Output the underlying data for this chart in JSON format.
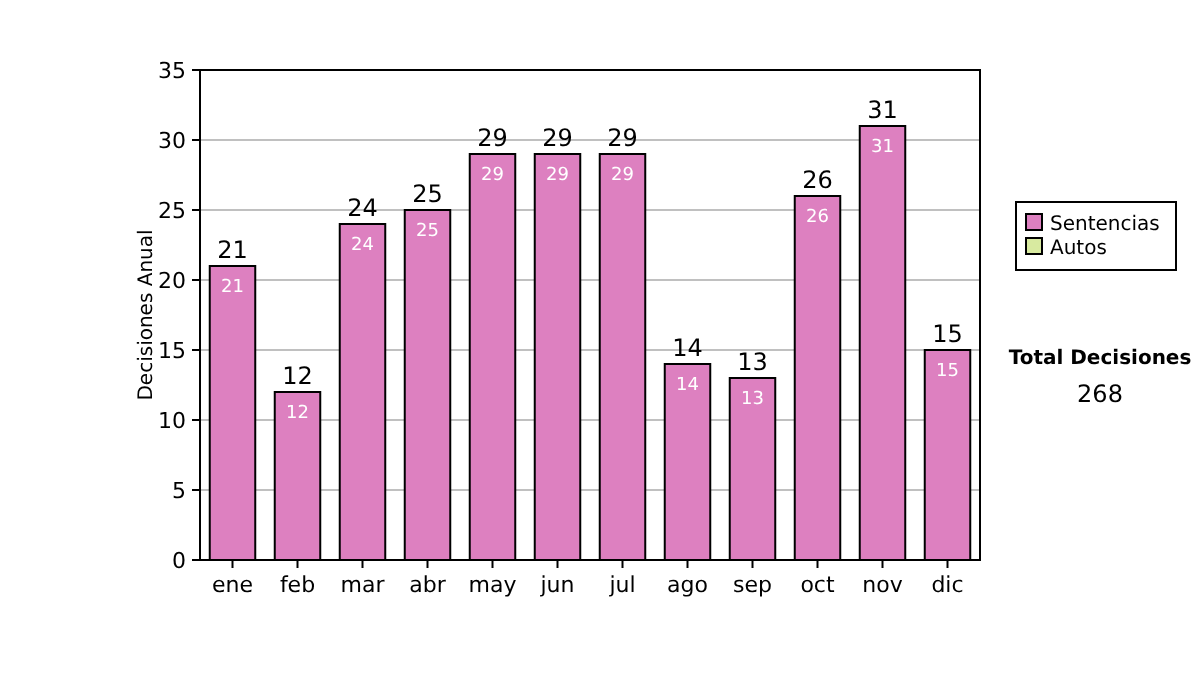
{
  "chart_data": {
    "type": "bar",
    "ylabel": "Decisiones Anual",
    "categories": [
      "ene",
      "feb",
      "mar",
      "abr",
      "may",
      "jun",
      "jul",
      "ago",
      "sep",
      "oct",
      "nov",
      "dic"
    ],
    "series": [
      {
        "name": "Sentencias",
        "color": "#dd80c0",
        "values": [
          21,
          12,
          24,
          25,
          29,
          29,
          29,
          14,
          13,
          26,
          31,
          15
        ]
      },
      {
        "name": "Autos",
        "color": "#d8eaa0",
        "values": [
          null,
          null,
          null,
          null,
          null,
          null,
          null,
          null,
          null,
          null,
          null,
          null
        ]
      }
    ],
    "totals": [
      "21",
      "12",
      "24",
      "25",
      "29",
      "29",
      "29",
      "14",
      "13",
      "26",
      "31",
      "15"
    ],
    "data_labels": true,
    "ylim": [
      0,
      35
    ],
    "yticks": [
      0,
      5,
      10,
      15,
      20,
      25,
      30,
      35
    ],
    "grid": "y",
    "legend": "right",
    "annotations": [
      "Total Decisiones",
      "268"
    ]
  }
}
